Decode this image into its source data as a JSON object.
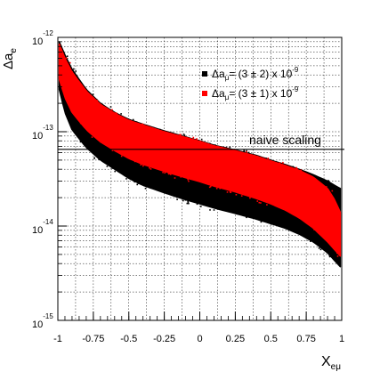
{
  "chart_data": {
    "type": "scatter",
    "title": "",
    "xlabel": "X",
    "xlabel_sub": "eμ",
    "ylabel": "Δa",
    "ylabel_sub": "e",
    "xlim": [
      -1,
      1
    ],
    "ylim": [
      1e-15,
      1e-12
    ],
    "yscale": "log",
    "grid": true,
    "x_ticks": [
      {
        "value": -1,
        "label": "-1"
      },
      {
        "value": -0.75,
        "label": "-0.75"
      },
      {
        "value": -0.5,
        "label": "-0.5"
      },
      {
        "value": -0.25,
        "label": "-0.25"
      },
      {
        "value": 0,
        "label": "0"
      },
      {
        "value": 0.25,
        "label": "0.25"
      },
      {
        "value": 0.5,
        "label": "0.5"
      },
      {
        "value": 0.75,
        "label": "0.75"
      },
      {
        "value": 1,
        "label": "1"
      }
    ],
    "y_ticks": [
      {
        "value": 1e-15,
        "base": "10",
        "exp": "-15"
      },
      {
        "value": 1e-14,
        "base": "10",
        "exp": "-14"
      },
      {
        "value": 1e-13,
        "base": "10",
        "exp": "-13"
      },
      {
        "value": 1e-12,
        "base": "10",
        "exp": "-12"
      }
    ],
    "legend_position": "top-right",
    "series": [
      {
        "name_main": "Δa",
        "name_sub": "μ",
        "name_rest": "= (3 ± 2) x 10",
        "name_exp": "-9",
        "color": "#000000",
        "band": {
          "x": [
            -0.99,
            -0.95,
            -0.9,
            -0.8,
            -0.7,
            -0.6,
            -0.5,
            -0.4,
            -0.25,
            -0.1,
            0,
            0.1,
            0.25,
            0.4,
            0.5,
            0.6,
            0.7,
            0.8,
            0.9,
            0.95,
            0.99
          ],
          "upper": [
            9e-13,
            6.5e-13,
            4.6e-13,
            2.8e-13,
            2e-13,
            1.6e-13,
            1.35e-13,
            1.2e-13,
            1.02e-13,
            8.8e-14,
            8e-14,
            7.2e-14,
            6.4e-14,
            5.6e-14,
            5e-14,
            4.5e-14,
            4e-14,
            3.5e-14,
            3e-14,
            2.7e-14,
            2.5e-14
          ],
          "lower": [
            2.8e-13,
            1.6e-13,
            1.05e-13,
            6.8e-14,
            5e-14,
            4e-14,
            3.2e-14,
            2.7e-14,
            2.25e-14,
            1.9e-14,
            1.72e-14,
            1.55e-14,
            1.36e-14,
            1.18e-14,
            1.06e-14,
            9.5e-15,
            8.2e-15,
            6.8e-15,
            5.2e-15,
            4.3e-15,
            3.7e-15
          ]
        }
      },
      {
        "name_main": "Δa",
        "name_sub": "μ",
        "name_rest": "= (3 ± 1) x 10",
        "name_exp": "-9",
        "color": "#ff0000",
        "band": {
          "x": [
            -0.99,
            -0.95,
            -0.9,
            -0.8,
            -0.7,
            -0.6,
            -0.5,
            -0.4,
            -0.25,
            -0.1,
            0,
            0.1,
            0.25,
            0.4,
            0.5,
            0.6,
            0.7,
            0.8,
            0.9,
            0.95,
            0.99
          ],
          "upper": [
            8.5e-13,
            6e-13,
            4.3e-13,
            2.7e-13,
            1.95e-13,
            1.57e-13,
            1.32e-13,
            1.18e-13,
            1e-13,
            8.7e-14,
            7.9e-14,
            7.1e-14,
            6.3e-14,
            5.5e-14,
            4.9e-14,
            4.4e-14,
            3.9e-14,
            3.3e-14,
            2.5e-14,
            1.9e-14,
            1.4e-14
          ],
          "lower": [
            3.6e-13,
            2.3e-13,
            1.6e-13,
            1.05e-13,
            7.8e-14,
            6.3e-14,
            5.2e-14,
            4.5e-14,
            3.8e-14,
            3.25e-14,
            2.95e-14,
            2.65e-14,
            2.3e-14,
            1.95e-14,
            1.72e-14,
            1.48e-14,
            1.22e-14,
            9.5e-15,
            6.8e-15,
            5.6e-15,
            4.8e-15
          ]
        }
      }
    ],
    "reference_line": {
      "y": 6.5e-14,
      "label": "naive scaling"
    }
  }
}
